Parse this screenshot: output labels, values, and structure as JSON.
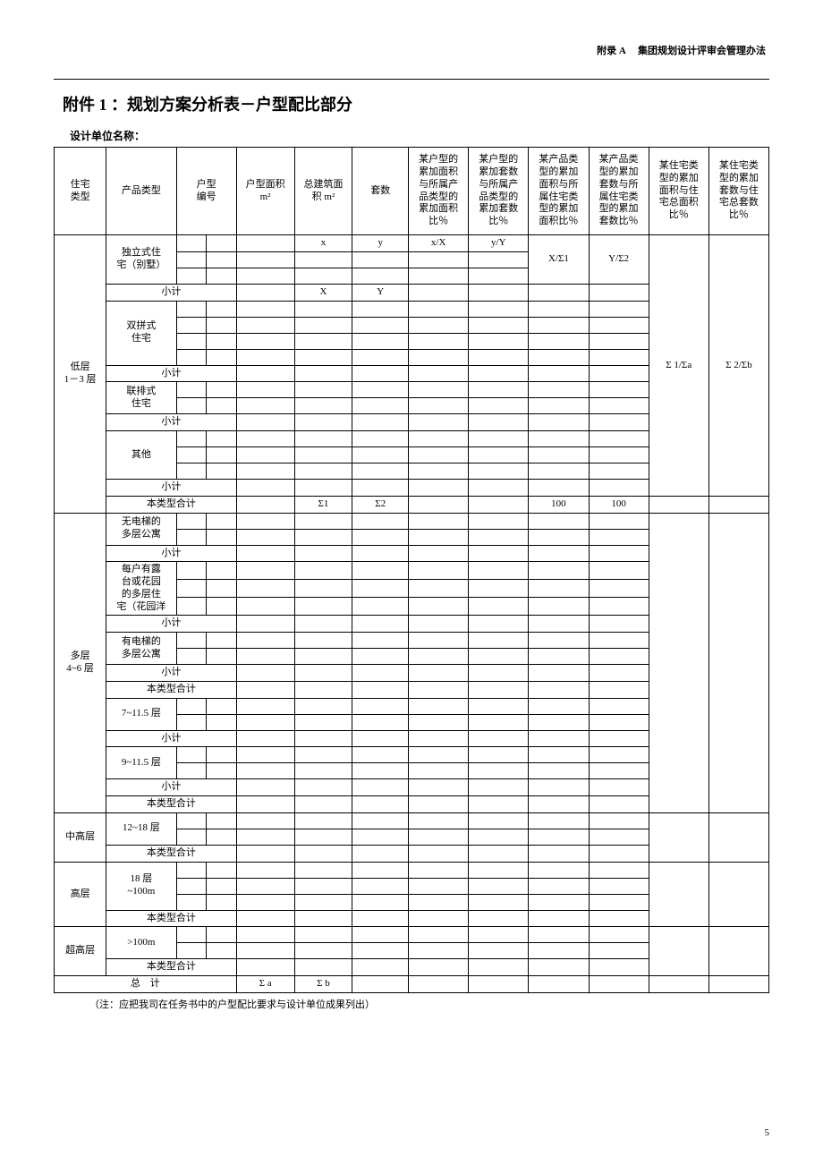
{
  "appendix_line": "附录 A　 集团规划设计评审会管理办法",
  "title": "附件 1 ：规划方案分析表－户型配比部分",
  "design_unit_label": "设计单位名称：",
  "columns": {
    "col1": "住宅\n类型",
    "col2": "产品类型",
    "col3": "户型\n编号",
    "col4": "户型面积\nm²",
    "col5": "总建筑面\n积 m²",
    "col6": "套数",
    "col7": "某户型的\n累加面积\n与所属产\n品类型的\n累加面积\n比％",
    "col8": "某户型的\n累加套数\n与所属产\n品类型的\n累加套数\n比％",
    "col9": "某产品类\n型的累加\n面积与所\n属住宅类\n型的累加\n面积比％",
    "col10": "某产品类\n型的累加\n套数与所\n属住宅类\n型的累加\n套数比％",
    "col11": "某住宅类\n型的累加\n面积与住\n宅总面积\n比％",
    "col12": "某住宅类\n型的累加\n套数与住\n宅总套数\n比％"
  },
  "labels": {
    "subtotal": "小计",
    "type_total": "本类型合计",
    "total": "总　计"
  },
  "section1": {
    "cat": "低层\n1－3 层",
    "prod1": "独立式住\n宅（别墅）",
    "prod2": "双拼式\n住宅",
    "prod3": "联排式\n住宅",
    "prod4": "其他",
    "r1_e": "x",
    "r1_f": "y",
    "r1_g": "x/X",
    "r1_h": "y/Y",
    "r1_i": "X/Σ1",
    "r1_j": "Y/Σ2",
    "sub1_e": "X",
    "sub1_f": "Y",
    "tt_e": "Σ1",
    "tt_f": "Σ2",
    "tt_i": "100",
    "tt_j": "100",
    "r_k": "Σ 1/Σa",
    "r_l": "Σ 2/Σb"
  },
  "section2": {
    "cat": "多层\n4~6 层",
    "prod1": "无电梯的\n多层公寓",
    "prod2": "每户有露\n台或花园\n的多层住\n宅（花园洋",
    "prod3": "有电梯的\n多层公寓",
    "prod4": "7~11.5 层",
    "prod5": "9~11.5 层"
  },
  "section3": {
    "cat": "中高层",
    "prod1": "12~18 层"
  },
  "section4": {
    "cat": "高层",
    "prod1": "18 层\n~100m"
  },
  "section5": {
    "cat": "超高层",
    "prod1": ">100m"
  },
  "grand": {
    "d": "Σ a",
    "e": "Σ b"
  },
  "note": "（注：应把我司在任务书中的户型配比要求与设计单位成果列出）",
  "page_num": "5"
}
